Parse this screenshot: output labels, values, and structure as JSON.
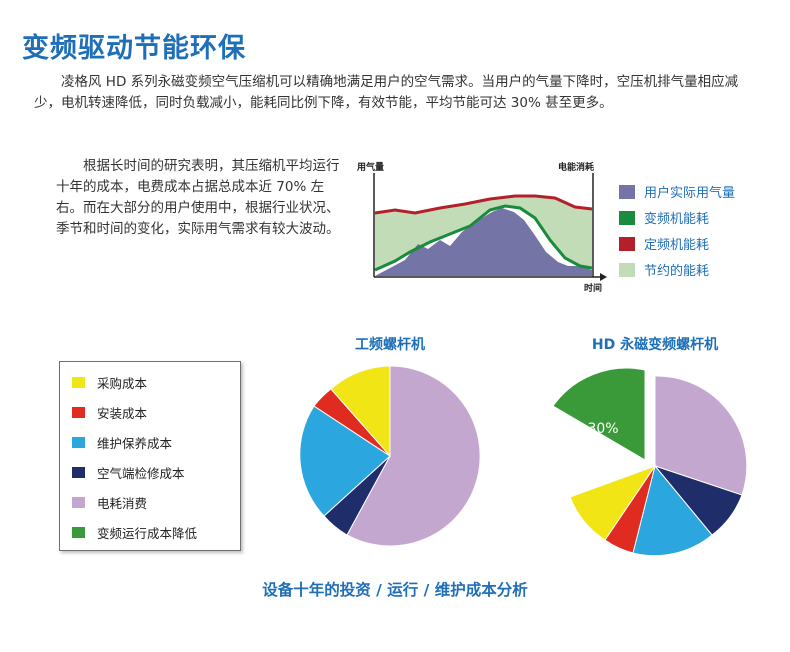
{
  "title": "变频驱动节能环保",
  "intro": "凌格风 HD 系列永磁变频空气压缩机可以精确地满足用户的空气需求。当用户的气量下降时，空压机排气量相应减少，电机转速降低，同时负载减小，能耗同比例下降，有效节能，平均节能可达 30% 甚至更多。",
  "research": "根据长时间的研究表明，其压缩机平均运行十年的成本，电费成本占据总成本近 70% 左右。而在大部分的用户使用中，根据行业状况、季节和时间的变化，实际用气需求有较大波动。",
  "energy_chart": {
    "y_left_label": "用气量",
    "y_right_label": "电能消耗",
    "x_label": "时间",
    "legend": [
      {
        "label": "用户实际用气量",
        "color": "#7474a6"
      },
      {
        "label": "变频机能耗",
        "color": "#1a8a3c"
      },
      {
        "label": "定频机能耗",
        "color": "#b3202a"
      },
      {
        "label": "节约的能耗",
        "color": "#c1dcb6"
      }
    ]
  },
  "cost_legend": [
    {
      "label": "采购成本",
      "color": "#f2e516"
    },
    {
      "label": "安装成本",
      "color": "#e02b20"
    },
    {
      "label": "维护保养成本",
      "color": "#2ca6de"
    },
    {
      "label": "空气端检修成本",
      "color": "#1f2d6b"
    },
    {
      "label": "电耗消费",
      "color": "#c3a7cf"
    },
    {
      "label": "变频运行成本降低",
      "color": "#3a9a3a"
    }
  ],
  "pie_left_title": "工频螺杆机",
  "pie_right_title": "HD 永磁变频螺杆机",
  "pie_right_savings_label": "30%",
  "caption": "设备十年的投资 / 运行 / 维护成本分析"
}
